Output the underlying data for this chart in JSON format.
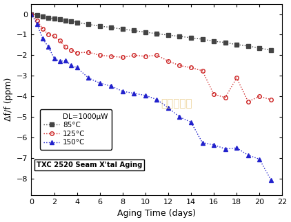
{
  "title": "",
  "xlabel": "Aging Time (days)",
  "ylabel": "Δf/f (ppm)",
  "xlim": [
    0,
    22
  ],
  "ylim": [
    -8.8,
    0.5
  ],
  "xticks": [
    0,
    2,
    4,
    6,
    8,
    10,
    12,
    14,
    16,
    18,
    20,
    22
  ],
  "yticks": [
    0,
    -1,
    -2,
    -3,
    -4,
    -5,
    -6,
    -7,
    -8
  ],
  "background_color": "#ffffff",
  "annotation_text": "金洛鑫电子",
  "annotation_color": "#e8c880",
  "legend_header": "DL=1000μW",
  "legend_box_label": "TXC 2520 Seam X'tal Aging",
  "series": [
    {
      "label": "85°C",
      "color": "#444444",
      "marker": "s",
      "markerfacecolor": "#444444",
      "x": [
        0,
        0.5,
        1,
        1.5,
        2,
        2.5,
        3,
        3.5,
        4,
        5,
        6,
        7,
        8,
        9,
        10,
        11,
        12,
        13,
        14,
        15,
        16,
        17,
        18,
        19,
        20,
        21
      ],
      "y": [
        0,
        -0.05,
        -0.12,
        -0.18,
        -0.22,
        -0.26,
        -0.3,
        -0.35,
        -0.4,
        -0.5,
        -0.58,
        -0.65,
        -0.73,
        -0.8,
        -0.88,
        -0.95,
        -1.02,
        -1.08,
        -1.15,
        -1.22,
        -1.32,
        -1.38,
        -1.48,
        -1.55,
        -1.65,
        -1.75
      ]
    },
    {
      "label": "125°C",
      "color": "#cc2222",
      "marker": "o",
      "markerfacecolor": "none",
      "x": [
        0,
        0.5,
        1,
        1.5,
        2,
        2.5,
        3,
        3.5,
        4,
        5,
        6,
        7,
        8,
        9,
        10,
        11,
        12,
        13,
        14,
        15,
        16,
        17,
        18,
        19,
        20,
        21
      ],
      "y": [
        0,
        -0.3,
        -0.72,
        -1.0,
        -1.05,
        -1.3,
        -1.6,
        -1.75,
        -1.88,
        -1.85,
        -2.0,
        -2.05,
        -2.1,
        -2.0,
        -2.05,
        -2.0,
        -2.28,
        -2.5,
        -2.6,
        -2.75,
        -3.9,
        -4.05,
        -3.1,
        -4.25,
        -4.0,
        -4.15
      ]
    },
    {
      "label": "150°C",
      "color": "#2222cc",
      "marker": "^",
      "markerfacecolor": "#2222cc",
      "x": [
        0,
        0.5,
        1,
        1.5,
        2,
        2.5,
        3,
        3.5,
        4,
        5,
        6,
        7,
        8,
        9,
        10,
        11,
        12,
        13,
        14,
        15,
        16,
        17,
        18,
        19,
        20,
        21
      ],
      "y": [
        0,
        -0.5,
        -1.2,
        -1.6,
        -2.15,
        -2.3,
        -2.25,
        -2.5,
        -2.6,
        -3.1,
        -3.35,
        -3.5,
        -3.75,
        -3.85,
        -3.95,
        -4.15,
        -4.55,
        -5.0,
        -5.25,
        -6.25,
        -6.35,
        -6.55,
        -6.5,
        -6.85,
        -7.05,
        -8.05
      ]
    }
  ]
}
